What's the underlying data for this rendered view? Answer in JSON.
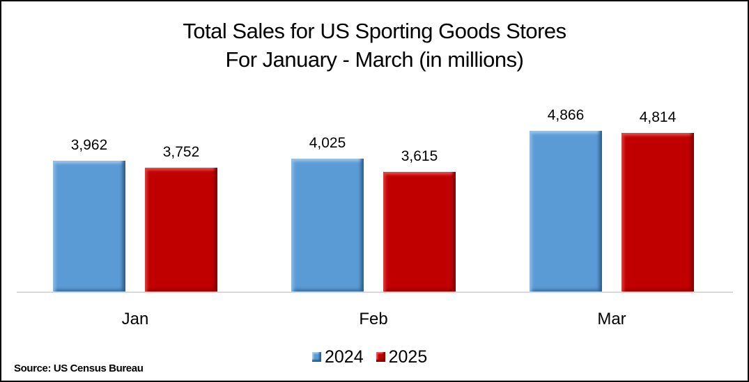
{
  "chart_data": {
    "type": "bar",
    "title": "Total Sales for US Sporting Goods Stores",
    "subtitle": "For January - March (in millions)",
    "categories": [
      "Jan",
      "Feb",
      "Mar"
    ],
    "series": [
      {
        "name": "2024",
        "values": [
          3962,
          4025,
          4866
        ],
        "labels": [
          "3,962",
          "4,025",
          "4,866"
        ],
        "color": "#5b9bd5"
      },
      {
        "name": "2025",
        "values": [
          3752,
          3615,
          4814
        ],
        "labels": [
          "3,752",
          "3,615",
          "4,814"
        ],
        "color": "#c00000"
      }
    ],
    "xlabel": "",
    "ylabel": "",
    "ylim": [
      0,
      5000
    ],
    "grid": false,
    "legend_position": "bottom",
    "data_labels": true,
    "annotation": "Source: US Census Bureau"
  },
  "header": {
    "title_line1": "Total Sales for US Sporting Goods Stores",
    "title_line2": "For January - March (in millions)"
  },
  "legend": {
    "items": [
      {
        "label": "2024",
        "color": "#5b9bd5"
      },
      {
        "label": "2025",
        "color": "#c00000"
      }
    ]
  },
  "footer": {
    "source": "Source: US Census Bureau"
  }
}
